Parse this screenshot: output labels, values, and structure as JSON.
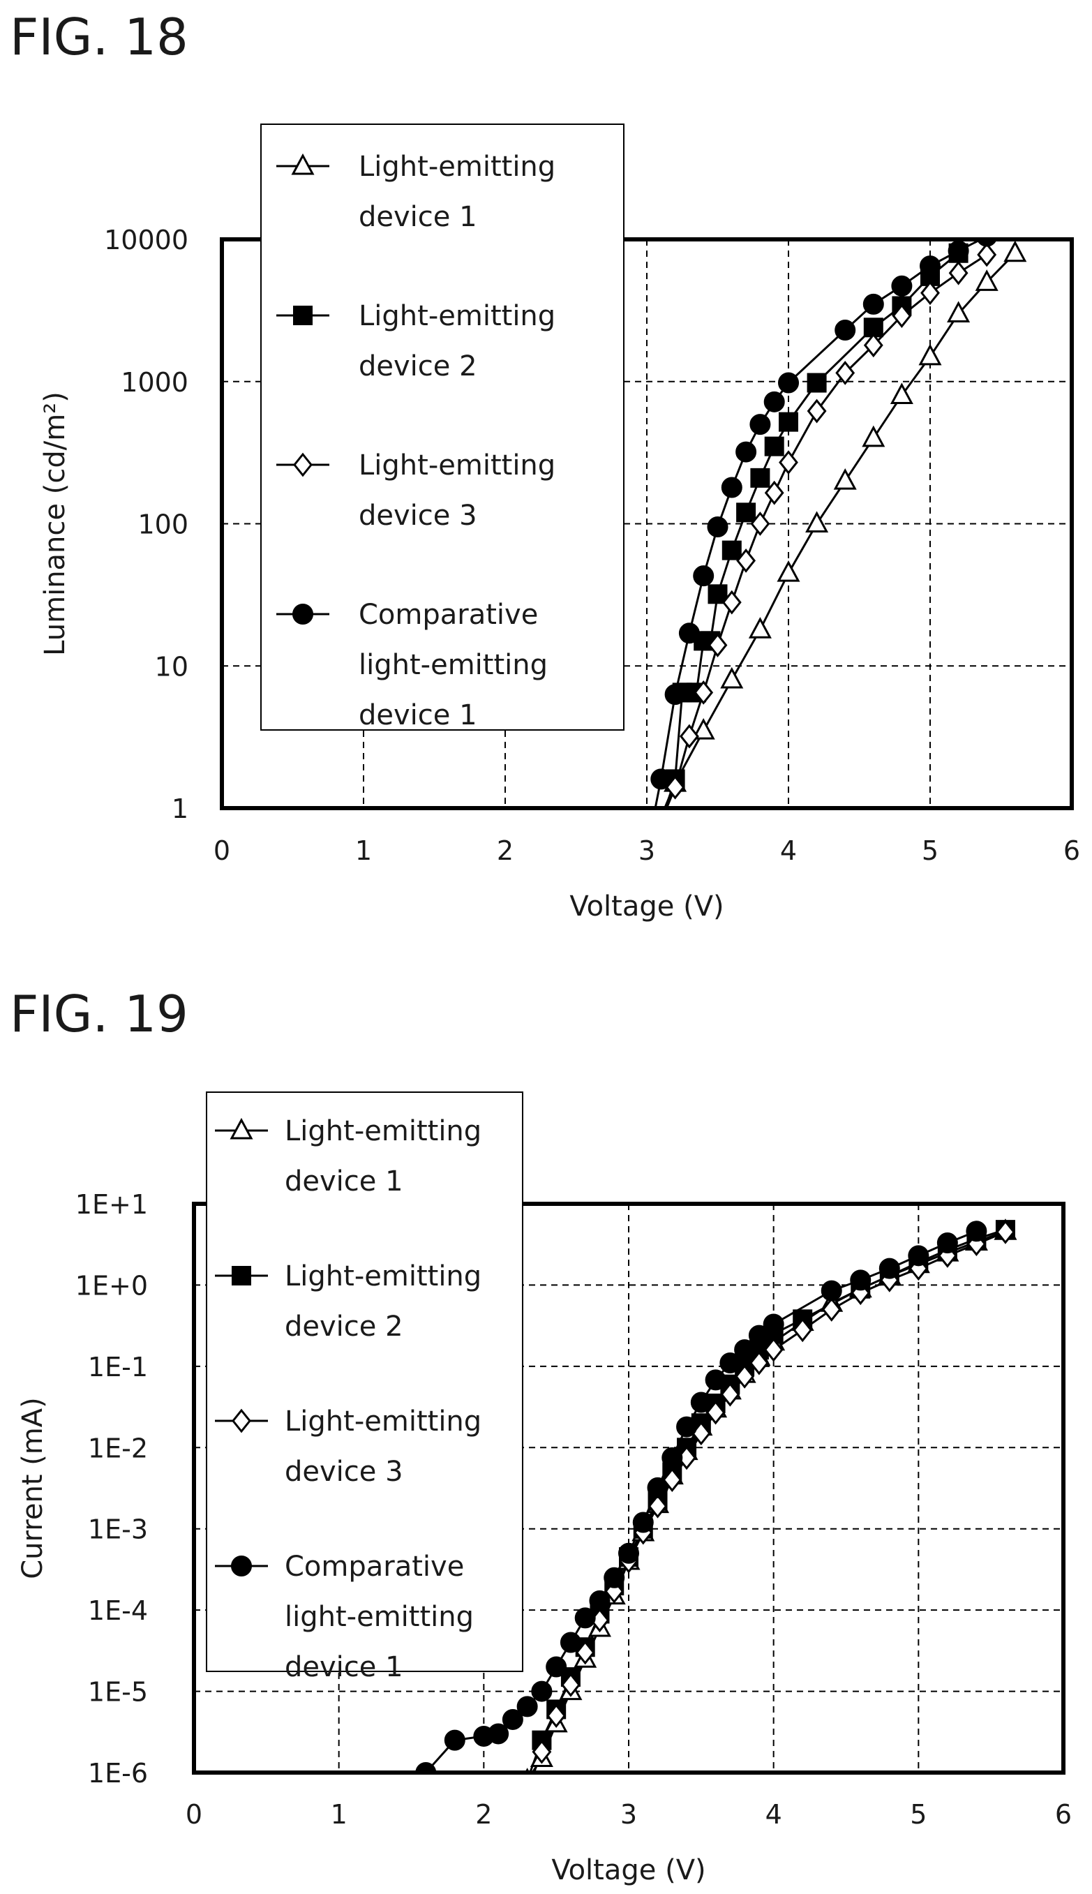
{
  "chart_data": [
    {
      "type": "line",
      "figure_label": "FIG. 18",
      "xlabel": "Voltage (V)",
      "ylabel": "Luminance (cd/m²)",
      "x_scale": "linear",
      "y_scale": "log",
      "xlim": [
        0,
        6
      ],
      "ylim": [
        1,
        10000
      ],
      "x_ticks": [
        "0",
        "1",
        "2",
        "3",
        "4",
        "5",
        "6"
      ],
      "y_ticks": [
        "1",
        "10",
        "100",
        "1000",
        "10000"
      ],
      "grid": true,
      "legend_position": "top-left",
      "series": [
        {
          "name": "Light-emitting device 1",
          "legend_lines": [
            "Light-emitting",
            "device 1"
          ],
          "marker": "triangle-open",
          "points": [
            [
              3.0,
              0.5
            ],
            [
              3.2,
              1.5
            ],
            [
              3.4,
              3.5
            ],
            [
              3.6,
              8
            ],
            [
              3.8,
              18
            ],
            [
              4.0,
              45
            ],
            [
              4.2,
              100
            ],
            [
              4.4,
              200
            ],
            [
              4.6,
              400
            ],
            [
              4.8,
              800
            ],
            [
              5.0,
              1500
            ],
            [
              5.2,
              3000
            ],
            [
              5.4,
              5000
            ],
            [
              5.6,
              8000
            ]
          ]
        },
        {
          "name": "Light-emitting device 2",
          "legend_lines": [
            "Light-emitting",
            "device 2"
          ],
          "marker": "square-filled",
          "points": [
            [
              3.1,
              0.8
            ],
            [
              3.2,
              1.6
            ],
            [
              3.25,
              6.5
            ],
            [
              3.3,
              6.5
            ],
            [
              3.35,
              6.5
            ],
            [
              3.4,
              15
            ],
            [
              3.45,
              15
            ],
            [
              3.5,
              32
            ],
            [
              3.6,
              65
            ],
            [
              3.7,
              120
            ],
            [
              3.8,
              210
            ],
            [
              3.9,
              350
            ],
            [
              4.0,
              520
            ],
            [
              4.2,
              980
            ],
            [
              4.6,
              2400
            ],
            [
              4.8,
              3400
            ],
            [
              5.0,
              5500
            ],
            [
              5.2,
              8000
            ]
          ]
        },
        {
          "name": "Light-emitting device 3",
          "legend_lines": [
            "Light-emitting",
            "device 3"
          ],
          "marker": "diamond-open",
          "points": [
            [
              3.1,
              0.8
            ],
            [
              3.2,
              1.4
            ],
            [
              3.3,
              3.2
            ],
            [
              3.4,
              6.5
            ],
            [
              3.5,
              14
            ],
            [
              3.6,
              28
            ],
            [
              3.7,
              55
            ],
            [
              3.8,
              100
            ],
            [
              3.9,
              165
            ],
            [
              4.0,
              270
            ],
            [
              4.2,
              620
            ],
            [
              4.4,
              1150
            ],
            [
              4.6,
              1800
            ],
            [
              4.8,
              2900
            ],
            [
              5.0,
              4200
            ],
            [
              5.2,
              5800
            ],
            [
              5.4,
              7800
            ]
          ]
        },
        {
          "name": "Comparative light-emitting device 1",
          "legend_lines": [
            "Comparative",
            "light-emitting",
            "device 1"
          ],
          "marker": "circle-filled",
          "points": [
            [
              3.0,
              0.5
            ],
            [
              3.1,
              1.6
            ],
            [
              3.2,
              6.3
            ],
            [
              3.3,
              17
            ],
            [
              3.4,
              43
            ],
            [
              3.5,
              95
            ],
            [
              3.6,
              180
            ],
            [
              3.7,
              320
            ],
            [
              3.8,
              500
            ],
            [
              3.9,
              720
            ],
            [
              4.0,
              980
            ],
            [
              4.4,
              2300
            ],
            [
              4.6,
              3500
            ],
            [
              4.8,
              4700
            ],
            [
              5.0,
              6500
            ],
            [
              5.2,
              8300
            ],
            [
              5.4,
              10500
            ]
          ]
        }
      ]
    },
    {
      "type": "line",
      "figure_label": "FIG. 19",
      "xlabel": "Voltage (V)",
      "ylabel": "Current (mA)",
      "x_scale": "linear",
      "y_scale": "log",
      "xlim": [
        0,
        6
      ],
      "ylim": [
        1e-06,
        10
      ],
      "x_ticks": [
        "0",
        "1",
        "2",
        "3",
        "4",
        "5",
        "6"
      ],
      "y_ticks": [
        "1E-6",
        "1E-5",
        "1E-4",
        "1E-3",
        "1E-2",
        "1E-1",
        "1E+0",
        "1E+1"
      ],
      "grid": true,
      "legend_position": "top-left",
      "series": [
        {
          "name": "Light-emitting device 1",
          "legend_lines": [
            "Light-emitting",
            "device 1"
          ],
          "marker": "triangle-open",
          "points": [
            [
              2.2,
              5e-07
            ],
            [
              2.3,
              8e-07
            ],
            [
              2.4,
              1.5e-06
            ],
            [
              2.5,
              4e-06
            ],
            [
              2.6,
              1e-05
            ],
            [
              2.7,
              2.5e-05
            ],
            [
              2.8,
              6e-05
            ],
            [
              2.9,
              0.00015
            ],
            [
              3.0,
              0.0004
            ],
            [
              3.1,
              0.0009
            ],
            [
              3.2,
              0.002
            ],
            [
              3.3,
              0.0045
            ],
            [
              3.4,
              0.009
            ],
            [
              3.5,
              0.018
            ],
            [
              3.6,
              0.03
            ],
            [
              3.7,
              0.05
            ],
            [
              3.8,
              0.08
            ],
            [
              3.9,
              0.13
            ],
            [
              4.0,
              0.2
            ],
            [
              4.2,
              0.35
            ],
            [
              4.4,
              0.6
            ],
            [
              4.6,
              0.9
            ],
            [
              4.8,
              1.3
            ],
            [
              5.0,
              1.8
            ],
            [
              5.2,
              2.5
            ],
            [
              5.4,
              3.4
            ],
            [
              5.6,
              4.6
            ]
          ]
        },
        {
          "name": "Light-emitting device 2",
          "legend_lines": [
            "Light-emitting",
            "device 2"
          ],
          "marker": "square-filled",
          "points": [
            [
              2.3,
              8e-07
            ],
            [
              2.4,
              2.5e-06
            ],
            [
              2.5,
              6e-06
            ],
            [
              2.6,
              1.5e-05
            ],
            [
              2.7,
              3.5e-05
            ],
            [
              2.8,
              9e-05
            ],
            [
              2.9,
              0.0002
            ],
            [
              3.0,
              0.00045
            ],
            [
              3.1,
              0.001
            ],
            [
              3.2,
              0.0022
            ],
            [
              3.3,
              0.005
            ],
            [
              3.4,
              0.01
            ],
            [
              3.5,
              0.02
            ],
            [
              3.6,
              0.035
            ],
            [
              3.7,
              0.06
            ],
            [
              3.8,
              0.1
            ],
            [
              3.9,
              0.16
            ],
            [
              4.0,
              0.25
            ],
            [
              4.2,
              0.38
            ],
            [
              4.6,
              0.9
            ],
            [
              4.8,
              1.3
            ],
            [
              5.0,
              1.9
            ],
            [
              5.2,
              2.7
            ],
            [
              5.4,
              3.7
            ],
            [
              5.6,
              4.8
            ]
          ]
        },
        {
          "name": "Light-emitting device 3",
          "legend_lines": [
            "Light-emitting",
            "device 3"
          ],
          "marker": "diamond-open",
          "points": [
            [
              2.3,
              6e-07
            ],
            [
              2.4,
              1.8e-06
            ],
            [
              2.5,
              5e-06
            ],
            [
              2.6,
              1.2e-05
            ],
            [
              2.7,
              3e-05
            ],
            [
              2.8,
              7.5e-05
            ],
            [
              2.9,
              0.00017
            ],
            [
              3.0,
              0.0004
            ],
            [
              3.1,
              0.0009
            ],
            [
              3.2,
              0.0019
            ],
            [
              3.3,
              0.004
            ],
            [
              3.4,
              0.0075
            ],
            [
              3.5,
              0.015
            ],
            [
              3.6,
              0.027
            ],
            [
              3.7,
              0.045
            ],
            [
              3.8,
              0.075
            ],
            [
              3.9,
              0.11
            ],
            [
              4.0,
              0.16
            ],
            [
              4.2,
              0.28
            ],
            [
              4.4,
              0.5
            ],
            [
              4.6,
              0.8
            ],
            [
              4.8,
              1.15
            ],
            [
              5.0,
              1.6
            ],
            [
              5.2,
              2.3
            ],
            [
              5.4,
              3.2
            ],
            [
              5.6,
              4.5
            ]
          ]
        },
        {
          "name": "Comparative light-emitting device 1",
          "legend_lines": [
            "Comparative",
            "light-emitting",
            "device 1"
          ],
          "marker": "circle-filled",
          "points": [
            [
              1.6,
              1e-06
            ],
            [
              1.8,
              2.5e-06
            ],
            [
              2.0,
              2.8e-06
            ],
            [
              2.1,
              3e-06
            ],
            [
              2.2,
              4.5e-06
            ],
            [
              2.3,
              6.5e-06
            ],
            [
              2.4,
              1e-05
            ],
            [
              2.5,
              2e-05
            ],
            [
              2.6,
              4e-05
            ],
            [
              2.7,
              8e-05
            ],
            [
              2.8,
              0.00013
            ],
            [
              2.9,
              0.00025
            ],
            [
              3.0,
              0.0005
            ],
            [
              3.1,
              0.0012
            ],
            [
              3.2,
              0.0032
            ],
            [
              3.3,
              0.0075
            ],
            [
              3.4,
              0.018
            ],
            [
              3.5,
              0.036
            ],
            [
              3.6,
              0.068
            ],
            [
              3.7,
              0.11
            ],
            [
              3.8,
              0.16
            ],
            [
              3.9,
              0.24
            ],
            [
              4.0,
              0.33
            ],
            [
              4.4,
              0.85
            ],
            [
              4.6,
              1.15
            ],
            [
              4.8,
              1.6
            ],
            [
              5.0,
              2.3
            ],
            [
              5.2,
              3.3
            ],
            [
              5.4,
              4.6
            ]
          ]
        }
      ]
    }
  ]
}
